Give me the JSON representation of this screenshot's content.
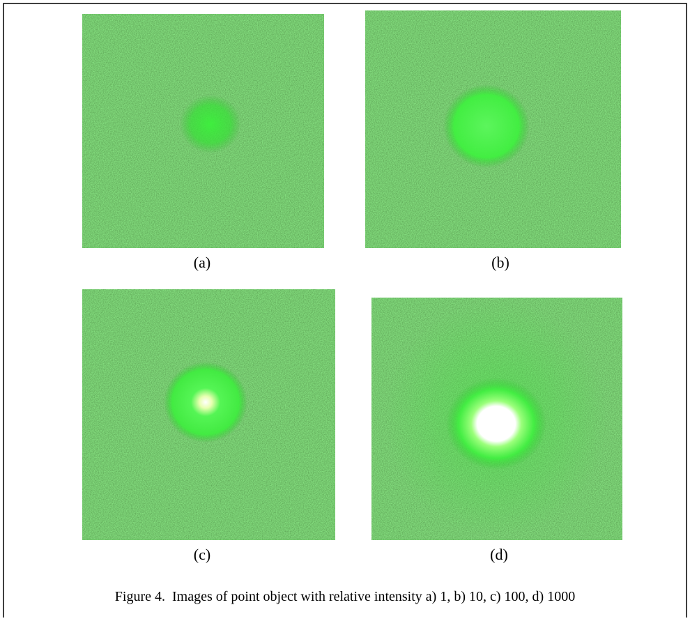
{
  "panels": [
    {
      "label": "(a)"
    },
    {
      "label": "(b)"
    },
    {
      "label": "(c)"
    },
    {
      "label": "(d)"
    }
  ],
  "caption": "Figure 4.  Images of point object with relative intensity a) 1, b) 10, c) 100, d) 1000"
}
